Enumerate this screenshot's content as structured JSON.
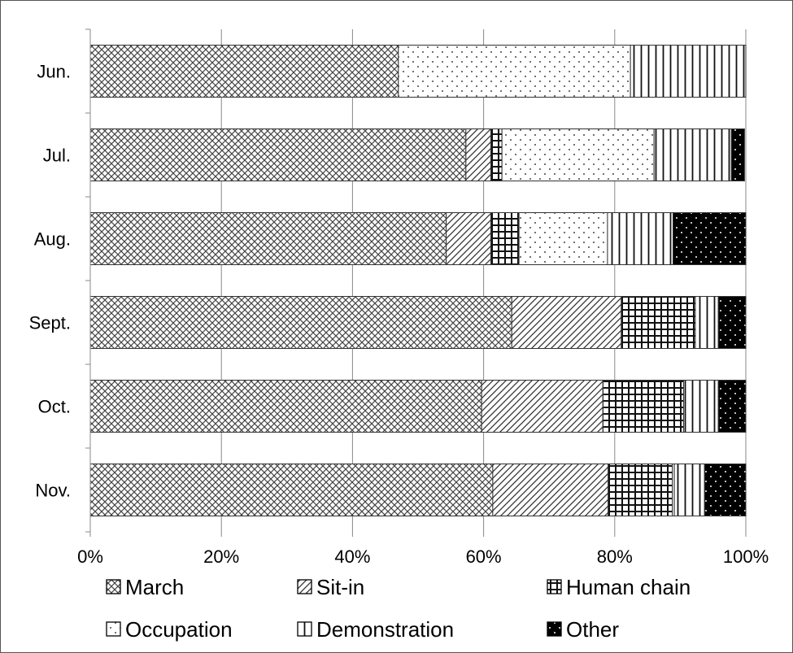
{
  "chart_data": {
    "type": "bar",
    "orientation": "horizontal",
    "stacked": "percent",
    "title": "",
    "xlabel": "",
    "ylabel": "",
    "xlim": [
      0,
      100
    ],
    "x_ticks": [
      "0%",
      "20%",
      "40%",
      "60%",
      "80%",
      "100%"
    ],
    "grid": true,
    "legend_position": "bottom",
    "categories": [
      "Jun.",
      "Jul.",
      "Aug.",
      "Sept.",
      "Oct.",
      "Nov."
    ],
    "series": [
      {
        "name": "March",
        "pattern": "crosshatch",
        "values": [
          47,
          57.3,
          54.3,
          64.3,
          59.7,
          61.4
        ]
      },
      {
        "name": "Sit-in",
        "pattern": "diagonal",
        "values": [
          0,
          3.8,
          6.8,
          16.7,
          18.5,
          17.6
        ]
      },
      {
        "name": "Human chain",
        "pattern": "grid",
        "values": [
          0,
          1.7,
          4.3,
          11.3,
          12.3,
          9.8
        ]
      },
      {
        "name": "Occupation",
        "pattern": "dots",
        "values": [
          35.4,
          23.2,
          13.5,
          0,
          0,
          0.3
        ]
      },
      {
        "name": "Demonstration",
        "pattern": "vertical",
        "values": [
          17.6,
          11.8,
          10,
          3.5,
          5.3,
          4.6
        ]
      },
      {
        "name": "Other",
        "pattern": "black-dots",
        "values": [
          0,
          2,
          11.1,
          4.2,
          4.2,
          6.3
        ]
      }
    ]
  }
}
